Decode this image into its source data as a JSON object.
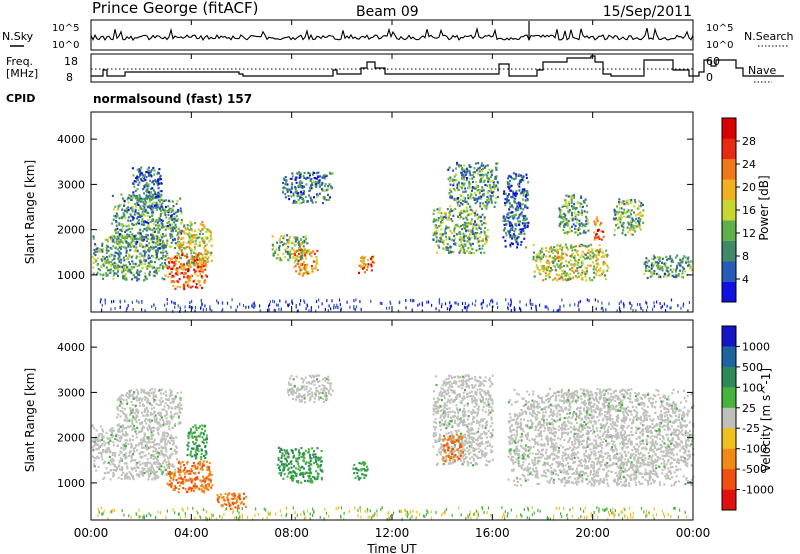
{
  "header": {
    "station": "Prince George (fitACF)",
    "beam": "Beam 09",
    "date": "15/Sep/2011"
  },
  "top_panels": {
    "nsky_label": "N.Sky",
    "nsearch_label": "N.Search",
    "noise_ticks": [
      "10^5",
      "10^0"
    ],
    "freq_label_1": "Freq.",
    "freq_label_2": "[MHz]",
    "freq_ticks": [
      "18",
      "8"
    ],
    "nave_label": "Nave",
    "nave_ticks": [
      "60",
      "0"
    ],
    "cpid_label": "CPID",
    "cpid_text": "normalsound (fast) 157"
  },
  "x_axis": {
    "label": "Time UT",
    "ticks": [
      "00:00",
      "04:00",
      "08:00",
      "12:00",
      "16:00",
      "20:00",
      "00:00"
    ]
  },
  "chart_data": [
    {
      "type": "heatmap",
      "quantity": "Power",
      "ylabel": "Slant Range [km]",
      "xlabel": "",
      "x_range_hours": [
        0,
        24
      ],
      "ylim": [
        180,
        4600
      ],
      "y_ticks": [
        1000,
        2000,
        3000,
        4000
      ],
      "colorbar": {
        "label": "Power [dB]",
        "range": [
          0,
          32
        ],
        "ticks": [
          4,
          8,
          12,
          16,
          20,
          24,
          28
        ],
        "colors": [
          "#1010e0",
          "#2a5ab8",
          "#3f8a6a",
          "#5fb04a",
          "#c8d830",
          "#f0b020",
          "#f07818",
          "#e82a12",
          "#d80000"
        ]
      },
      "echo_regions": [
        {
          "t0": 0.0,
          "t1": 3.0,
          "r0": 900,
          "r1": 1900,
          "level": 10
        },
        {
          "t0": 0.8,
          "t1": 3.6,
          "r0": 1600,
          "r1": 2800,
          "level": 9
        },
        {
          "t0": 3.0,
          "t1": 4.6,
          "r0": 700,
          "r1": 1500,
          "level": 26
        },
        {
          "t0": 3.4,
          "t1": 4.8,
          "r0": 1200,
          "r1": 2200,
          "level": 17
        },
        {
          "t0": 1.6,
          "t1": 2.8,
          "r0": 2500,
          "r1": 3400,
          "level": 6
        },
        {
          "t0": 7.6,
          "t1": 9.6,
          "r0": 2600,
          "r1": 3300,
          "level": 7
        },
        {
          "t0": 8.0,
          "t1": 9.0,
          "r0": 1000,
          "r1": 1600,
          "level": 22
        },
        {
          "t0": 7.2,
          "t1": 8.6,
          "r0": 1300,
          "r1": 1900,
          "level": 12
        },
        {
          "t0": 10.6,
          "t1": 11.3,
          "r0": 1050,
          "r1": 1450,
          "level": 24
        },
        {
          "t0": 13.6,
          "t1": 15.8,
          "r0": 1500,
          "r1": 2500,
          "level": 11
        },
        {
          "t0": 14.2,
          "t1": 16.2,
          "r0": 2500,
          "r1": 3500,
          "level": 9
        },
        {
          "t0": 16.4,
          "t1": 17.4,
          "r0": 1600,
          "r1": 3300,
          "level": 5
        },
        {
          "t0": 17.6,
          "t1": 20.6,
          "r0": 900,
          "r1": 1700,
          "level": 16
        },
        {
          "t0": 18.6,
          "t1": 19.8,
          "r0": 1900,
          "r1": 2800,
          "level": 10
        },
        {
          "t0": 20.0,
          "t1": 20.4,
          "r0": 1800,
          "r1": 2300,
          "level": 25
        },
        {
          "t0": 20.8,
          "t1": 22.0,
          "r0": 1900,
          "r1": 2700,
          "level": 11
        },
        {
          "t0": 22.0,
          "t1": 24.0,
          "r0": 950,
          "r1": 1450,
          "level": 9
        }
      ]
    },
    {
      "type": "heatmap",
      "quantity": "Velocity",
      "ylabel": "Slant Range [km]",
      "xlabel": "Time UT",
      "x_range_hours": [
        0,
        24
      ],
      "ylim": [
        180,
        4600
      ],
      "y_ticks": [
        1000,
        2000,
        3000,
        4000
      ],
      "colorbar": {
        "label": "Velocity [m s^-1]",
        "ticks": [
          "1000",
          "500",
          "100",
          "25",
          "-25",
          "-100",
          "-500",
          "-1000"
        ],
        "colors": [
          "#1414c8",
          "#1e64a0",
          "#2e8a5a",
          "#44b43c",
          "#c0c0bc",
          "#f0c020",
          "#f08a14",
          "#f05010",
          "#e01010"
        ]
      },
      "echo_regions": [
        {
          "t0": 0.0,
          "t1": 3.4,
          "r0": 1100,
          "r1": 2300,
          "v": 0
        },
        {
          "t0": 1.0,
          "t1": 3.6,
          "r0": 2300,
          "r1": 3100,
          "v": 0
        },
        {
          "t0": 3.0,
          "t1": 4.8,
          "r0": 800,
          "r1": 1500,
          "v": -300
        },
        {
          "t0": 3.8,
          "t1": 4.6,
          "r0": 1500,
          "r1": 2300,
          "v": 120
        },
        {
          "t0": 5.0,
          "t1": 6.2,
          "r0": 450,
          "r1": 800,
          "v": -400
        },
        {
          "t0": 7.8,
          "t1": 9.6,
          "r0": 2800,
          "r1": 3400,
          "v": 0
        },
        {
          "t0": 7.4,
          "t1": 9.2,
          "r0": 1000,
          "r1": 1800,
          "v": 150
        },
        {
          "t0": 10.4,
          "t1": 11.0,
          "r0": 1100,
          "r1": 1500,
          "v": 150
        },
        {
          "t0": 13.6,
          "t1": 16.0,
          "r0": 1400,
          "r1": 3400,
          "v": 0
        },
        {
          "t0": 14.0,
          "t1": 14.8,
          "r0": 1500,
          "r1": 2100,
          "v": -400
        },
        {
          "t0": 16.6,
          "t1": 24.0,
          "r0": 950,
          "r1": 3100,
          "v": 0
        }
      ]
    }
  ]
}
